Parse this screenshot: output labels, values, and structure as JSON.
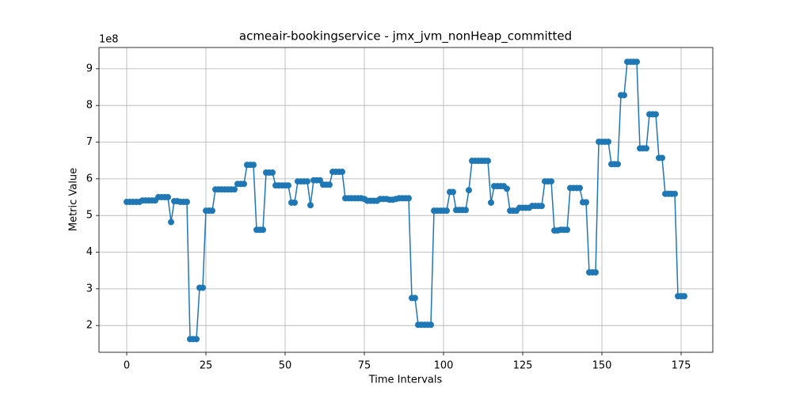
{
  "chart_data": {
    "type": "line",
    "title": "acmeair-bookingservice - jmx_jvm_nonHeap_committed",
    "x_label": "Time Intervals",
    "y_label": "Metric Value",
    "y_offset_label": "1e8",
    "x": [
      0,
      1,
      2,
      3,
      4,
      5,
      6,
      7,
      8,
      9,
      10,
      11,
      12,
      13,
      14,
      15,
      16,
      17,
      18,
      19,
      20,
      21,
      22,
      23,
      24,
      25,
      26,
      27,
      28,
      29,
      30,
      31,
      32,
      33,
      34,
      35,
      36,
      37,
      38,
      39,
      40,
      41,
      42,
      43,
      44,
      45,
      46,
      47,
      48,
      49,
      50,
      51,
      52,
      53,
      54,
      55,
      56,
      57,
      58,
      59,
      60,
      61,
      62,
      63,
      64,
      65,
      66,
      67,
      68,
      69,
      70,
      71,
      72,
      73,
      74,
      75,
      76,
      77,
      78,
      79,
      80,
      81,
      82,
      83,
      84,
      85,
      86,
      87,
      88,
      89,
      90,
      91,
      92,
      93,
      94,
      95,
      96,
      97,
      98,
      99,
      100,
      101,
      102,
      103,
      104,
      105,
      106,
      107,
      108,
      109,
      110,
      111,
      112,
      113,
      114,
      115,
      116,
      117,
      118,
      119,
      120,
      121,
      122,
      123,
      124,
      125,
      126,
      127,
      128,
      129,
      130,
      131,
      132,
      133,
      134,
      135,
      136,
      137,
      138,
      139,
      140,
      141,
      142,
      143,
      144,
      145,
      146,
      147,
      148,
      149,
      150,
      151,
      152,
      153,
      154,
      155,
      156,
      157,
      158,
      159,
      160,
      161,
      162,
      163,
      164,
      165,
      166,
      167,
      168,
      169,
      170,
      171,
      172,
      173,
      174,
      175,
      176
    ],
    "series": [
      {
        "color": "#1f77b4",
        "values": [
          5.37,
          5.37,
          5.37,
          5.37,
          5.37,
          5.41,
          5.41,
          5.41,
          5.41,
          5.41,
          5.5,
          5.5,
          5.5,
          5.5,
          4.82,
          5.39,
          5.39,
          5.37,
          5.37,
          5.37,
          1.63,
          1.63,
          1.63,
          3.03,
          3.03,
          5.13,
          5.13,
          5.13,
          5.71,
          5.71,
          5.71,
          5.71,
          5.71,
          5.71,
          5.71,
          5.86,
          5.86,
          5.86,
          6.38,
          6.38,
          6.38,
          4.61,
          4.61,
          4.61,
          6.17,
          6.17,
          6.17,
          5.82,
          5.82,
          5.82,
          5.82,
          5.82,
          5.35,
          5.35,
          5.93,
          5.93,
          5.93,
          5.93,
          5.28,
          5.96,
          5.96,
          5.96,
          5.84,
          5.84,
          5.84,
          6.19,
          6.19,
          6.19,
          6.19,
          5.47,
          5.47,
          5.47,
          5.47,
          5.47,
          5.47,
          5.45,
          5.4,
          5.4,
          5.4,
          5.4,
          5.45,
          5.45,
          5.45,
          5.43,
          5.43,
          5.45,
          5.47,
          5.47,
          5.47,
          5.47,
          2.75,
          2.75,
          2.02,
          2.02,
          2.02,
          2.02,
          2.02,
          5.13,
          5.13,
          5.13,
          5.13,
          5.13,
          5.64,
          5.64,
          5.15,
          5.15,
          5.15,
          5.15,
          5.69,
          6.49,
          6.49,
          6.49,
          6.49,
          6.49,
          6.49,
          5.35,
          5.8,
          5.8,
          5.8,
          5.8,
          5.73,
          5.13,
          5.13,
          5.13,
          5.21,
          5.21,
          5.21,
          5.21,
          5.26,
          5.26,
          5.26,
          5.26,
          5.93,
          5.93,
          5.93,
          4.59,
          4.59,
          4.61,
          4.61,
          4.61,
          5.75,
          5.75,
          5.75,
          5.75,
          5.36,
          5.36,
          3.45,
          3.45,
          3.45,
          7.01,
          7.01,
          7.01,
          7.01,
          6.4,
          6.4,
          6.4,
          8.28,
          8.28,
          9.19,
          9.19,
          9.19,
          9.19,
          6.83,
          6.83,
          6.83,
          7.76,
          7.76,
          7.76,
          6.57,
          6.57,
          5.59,
          5.59,
          5.59,
          5.59,
          2.8,
          2.8,
          2.8
        ]
      }
    ],
    "xlim": [
      -8.75,
      185
    ],
    "xticks": [
      0,
      25,
      50,
      75,
      100,
      125,
      150,
      175
    ],
    "ylim": [
      1.27,
      9.58
    ],
    "yticks": [
      2,
      3,
      4,
      5,
      6,
      7,
      8,
      9
    ],
    "grid": true,
    "markers": true
  }
}
